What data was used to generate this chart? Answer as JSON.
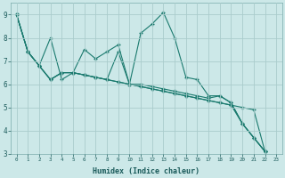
{
  "xlabel": "Humidex (Indice chaleur)",
  "background_color": "#cce8e8",
  "line_color": "#1a7a6e",
  "grid_color": "#aacccc",
  "xlim": [
    -0.5,
    23.5
  ],
  "ylim": [
    3,
    9.5
  ],
  "yticks": [
    3,
    4,
    5,
    6,
    7,
    8,
    9
  ],
  "xticks": [
    0,
    1,
    2,
    3,
    4,
    5,
    6,
    7,
    8,
    9,
    10,
    11,
    12,
    13,
    14,
    15,
    16,
    17,
    18,
    19,
    20,
    21,
    22,
    23
  ],
  "series": {
    "s1_x": [
      0,
      1,
      2,
      3,
      4,
      5,
      6,
      7,
      8,
      9,
      10,
      11,
      12,
      13,
      14,
      15,
      16,
      17,
      18,
      19,
      20,
      21,
      22
    ],
    "s1_y": [
      9.0,
      7.4,
      6.8,
      8.0,
      6.2,
      6.5,
      7.5,
      7.1,
      7.4,
      7.7,
      6.0,
      8.2,
      8.6,
      9.1,
      8.0,
      6.3,
      6.2,
      5.5,
      5.5,
      5.2,
      4.3,
      3.7,
      3.1
    ],
    "s2_x": [
      0,
      1,
      2,
      3,
      4,
      5,
      6,
      7,
      8,
      9,
      10,
      11,
      12,
      13,
      14,
      15,
      16,
      17,
      18,
      19,
      20,
      21,
      22
    ],
    "s2_y": [
      9.0,
      7.4,
      6.8,
      6.2,
      6.5,
      6.5,
      6.4,
      6.3,
      6.2,
      7.4,
      6.0,
      6.0,
      5.9,
      5.8,
      5.7,
      5.6,
      5.5,
      5.4,
      5.5,
      5.2,
      4.3,
      3.7,
      3.1
    ],
    "s3_x": [
      0,
      1,
      2,
      3,
      4,
      5,
      6,
      7,
      8,
      9,
      10,
      11,
      12,
      13,
      14,
      15,
      16,
      17,
      18,
      19,
      20,
      21,
      22
    ],
    "s3_y": [
      9.0,
      7.4,
      6.8,
      6.2,
      6.5,
      6.5,
      6.4,
      6.3,
      6.2,
      6.1,
      6.0,
      5.9,
      5.8,
      5.7,
      5.6,
      5.5,
      5.4,
      5.3,
      5.2,
      5.1,
      4.3,
      3.7,
      3.1
    ],
    "s4_x": [
      0,
      1,
      2,
      3,
      4,
      5,
      6,
      7,
      8,
      9,
      10,
      11,
      12,
      13,
      14,
      15,
      16,
      17,
      18,
      19,
      20,
      21,
      22
    ],
    "s4_y": [
      9.0,
      7.4,
      6.8,
      6.2,
      6.5,
      6.5,
      6.4,
      6.3,
      6.2,
      6.1,
      6.0,
      5.9,
      5.8,
      5.7,
      5.6,
      5.5,
      5.4,
      5.3,
      5.2,
      5.1,
      5.0,
      4.9,
      3.1
    ]
  }
}
